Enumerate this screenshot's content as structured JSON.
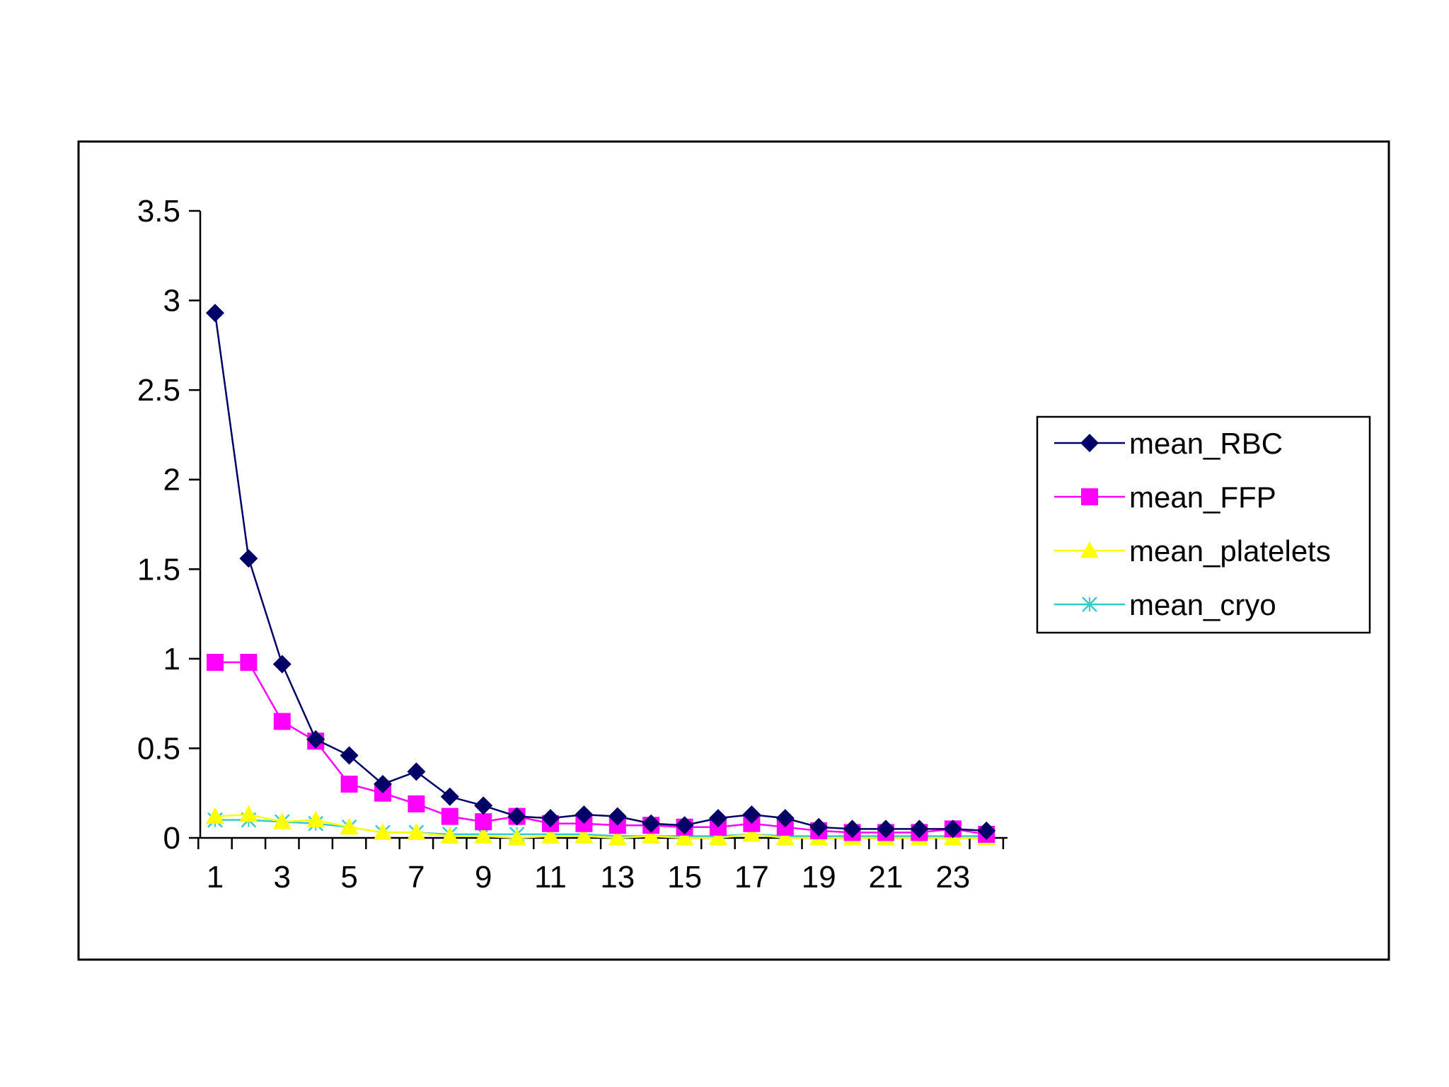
{
  "chart_data": {
    "type": "line",
    "title": "",
    "xlabel": "",
    "ylabel": "",
    "x": [
      1,
      2,
      3,
      4,
      5,
      6,
      7,
      8,
      9,
      10,
      11,
      12,
      13,
      14,
      15,
      16,
      17,
      18,
      19,
      20,
      21,
      22,
      23,
      24
    ],
    "x_tick_labels": [
      "1",
      "3",
      "5",
      "7",
      "9",
      "11",
      "13",
      "15",
      "17",
      "19",
      "21",
      "23"
    ],
    "y_tick_labels": [
      "0",
      "0.5",
      "1",
      "1.5",
      "2",
      "2.5",
      "3",
      "3.5"
    ],
    "ylim": [
      0,
      3.5
    ],
    "grid": false,
    "legend_position": "right",
    "series": [
      {
        "name": "mean_RBC",
        "color": "#000066",
        "marker": "diamond",
        "values": [
          2.93,
          1.56,
          0.97,
          0.55,
          0.46,
          0.3,
          0.37,
          0.23,
          0.18,
          0.12,
          0.11,
          0.13,
          0.12,
          0.08,
          0.07,
          0.11,
          0.13,
          0.11,
          0.06,
          0.05,
          0.05,
          0.05,
          0.05,
          0.04
        ]
      },
      {
        "name": "mean_FFP",
        "color": "#ff00ff",
        "marker": "square",
        "values": [
          0.98,
          0.98,
          0.65,
          0.54,
          0.3,
          0.25,
          0.19,
          0.12,
          0.09,
          0.12,
          0.08,
          0.08,
          0.07,
          0.07,
          0.06,
          0.06,
          0.08,
          0.06,
          0.04,
          0.03,
          0.03,
          0.03,
          0.05,
          0.02
        ]
      },
      {
        "name": "mean_platelets",
        "color": "#ffff00",
        "marker": "triangle",
        "values": [
          0.12,
          0.13,
          0.09,
          0.1,
          0.06,
          0.03,
          0.03,
          0.01,
          0.01,
          0.0,
          0.01,
          0.01,
          0.0,
          0.01,
          0.0,
          0.0,
          0.02,
          0.0,
          0.0,
          0.0,
          0.0,
          0.0,
          0.0,
          0.0
        ]
      },
      {
        "name": "mean_cryo",
        "color": "#33cccc",
        "marker": "x",
        "values": [
          0.1,
          0.1,
          0.09,
          0.08,
          0.06,
          0.03,
          0.03,
          0.02,
          0.02,
          0.02,
          0.02,
          0.02,
          0.01,
          0.01,
          0.01,
          0.01,
          0.02,
          0.01,
          0.01,
          0.01,
          0.01,
          0.01,
          0.01,
          0.01
        ]
      }
    ]
  }
}
